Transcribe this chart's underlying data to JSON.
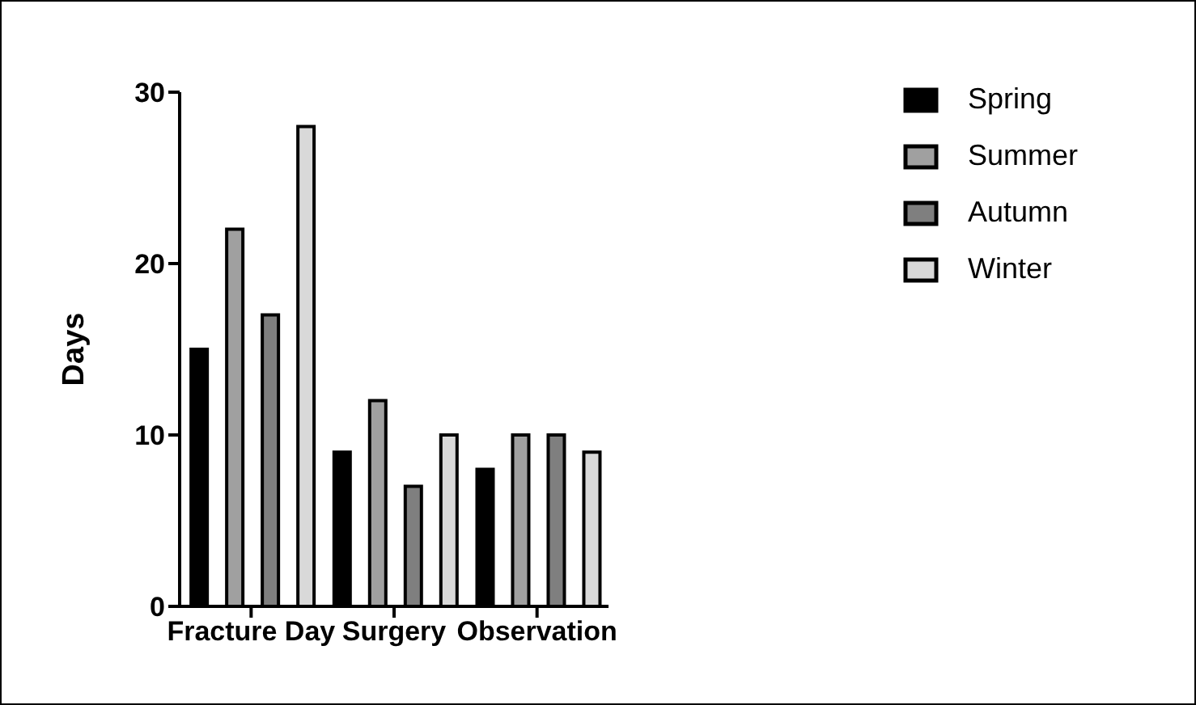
{
  "chart_data": {
    "type": "bar",
    "ylabel": "Days",
    "categories": [
      "Fracture Day",
      "Surgery",
      "Observation"
    ],
    "series": [
      {
        "name": "Spring",
        "color": "#000000",
        "values": [
          15,
          9,
          8
        ]
      },
      {
        "name": "Summer",
        "color": "#a0a0a0",
        "values": [
          22,
          12,
          10
        ]
      },
      {
        "name": "Autumn",
        "color": "#7f7f7f",
        "values": [
          17,
          7,
          10
        ]
      },
      {
        "name": "Winter",
        "color": "#d9d9d9",
        "values": [
          28,
          10,
          9
        ]
      }
    ],
    "ylim": [
      0,
      30
    ],
    "yticks": [
      0,
      10,
      20,
      30
    ],
    "grid": false,
    "legend": "top right"
  }
}
